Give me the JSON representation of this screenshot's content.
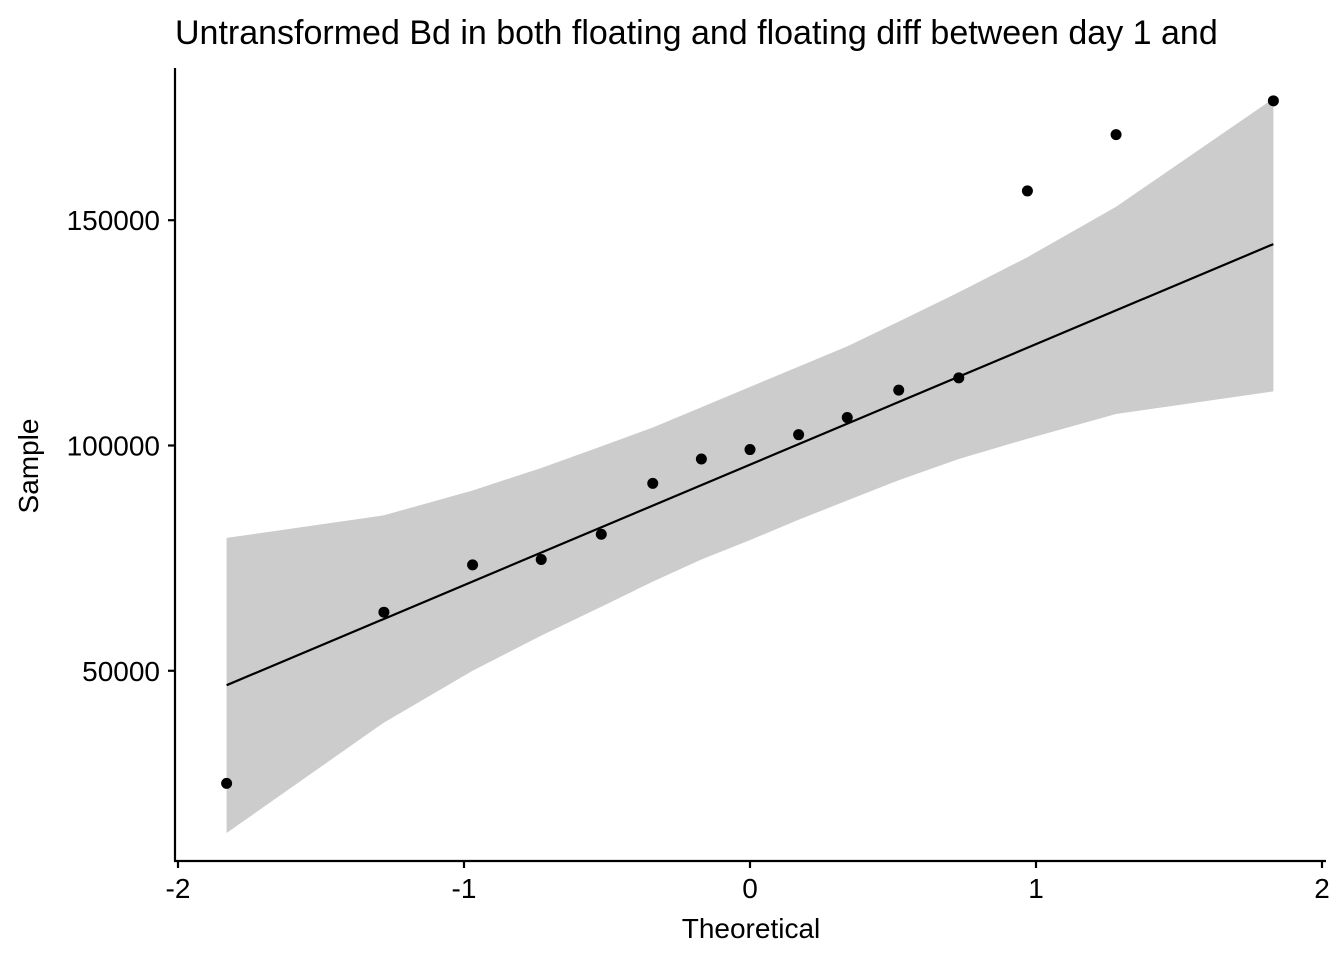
{
  "chart_data": {
    "type": "scatter",
    "subtype": "qq-plot",
    "title": "Untransformed Bd in both floating and floating diff between day 1 and",
    "xlabel": "Theoretical",
    "ylabel": "Sample",
    "xlim": [
      -2,
      2
    ],
    "ylim": [
      8000,
      190000
    ],
    "x_ticks": [
      -2,
      -1,
      0,
      1,
      2
    ],
    "x_tick_labels": [
      "-2",
      "-1",
      "0",
      "1",
      "2"
    ],
    "y_ticks": [
      50000,
      100000,
      150000
    ],
    "y_tick_labels": [
      "50000",
      "100000",
      "150000"
    ],
    "grid": false,
    "legend": "none",
    "colors": {
      "points": "#000000",
      "line": "#000000",
      "band": "#cccccc",
      "axis": "#000000"
    },
    "points": [
      {
        "x": -1.83,
        "y": 25000
      },
      {
        "x": -1.28,
        "y": 63000
      },
      {
        "x": -0.97,
        "y": 73500
      },
      {
        "x": -0.73,
        "y": 74700
      },
      {
        "x": -0.52,
        "y": 80300
      },
      {
        "x": -0.34,
        "y": 91600
      },
      {
        "x": -0.17,
        "y": 97000
      },
      {
        "x": 0.0,
        "y": 99100
      },
      {
        "x": 0.17,
        "y": 102400
      },
      {
        "x": 0.34,
        "y": 106200
      },
      {
        "x": 0.52,
        "y": 112300
      },
      {
        "x": 0.73,
        "y": 115000
      },
      {
        "x": 0.97,
        "y": 156500
      },
      {
        "x": 1.28,
        "y": 169000
      },
      {
        "x": 1.83,
        "y": 176500
      }
    ],
    "reference_line": [
      {
        "x": -1.83,
        "y": 46800
      },
      {
        "x": 1.83,
        "y": 144700
      }
    ],
    "confidence_band": {
      "x": [
        -1.83,
        -1.28,
        -0.97,
        -0.73,
        -0.52,
        -0.34,
        -0.17,
        0.0,
        0.17,
        0.34,
        0.52,
        0.73,
        0.97,
        1.28,
        1.83
      ],
      "upper": [
        79500,
        84500,
        90000,
        95000,
        99800,
        104000,
        108500,
        113000,
        117500,
        122000,
        127500,
        134000,
        141800,
        153000,
        177000
      ],
      "lower": [
        14000,
        38500,
        50000,
        57800,
        64200,
        69800,
        74700,
        79000,
        83500,
        87800,
        92300,
        97000,
        101500,
        107000,
        112000
      ]
    }
  }
}
